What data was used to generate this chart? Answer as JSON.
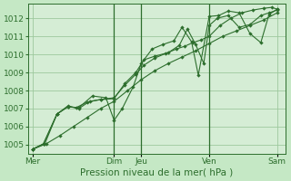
{
  "background_color": "#c5e8c5",
  "plot_bg_color": "#d5edd5",
  "grid_color": "#9dc89d",
  "line_color": "#2d6e2d",
  "marker_color": "#2d6e2d",
  "xlabel": "Pression niveau de la mer( hPa )",
  "ylim": [
    1004.5,
    1012.8
  ],
  "yticks": [
    1005,
    1006,
    1007,
    1008,
    1009,
    1010,
    1011,
    1012
  ],
  "xtick_labels": [
    "Mer",
    "Dim",
    "Jeu",
    "Ven",
    "Sam"
  ],
  "xtick_positions": [
    0,
    3,
    4,
    6.5,
    9
  ],
  "vlines_x": [
    3,
    4,
    6.5
  ],
  "vline_color": "#2d6e2d",
  "tick_color": "#2d6e2d",
  "tick_fontsize": 6.5,
  "xlabel_fontsize": 7.5,
  "lines": [
    {
      "x": [
        0,
        0.5,
        1.0,
        1.5,
        2.0,
        2.5,
        3.0,
        3.5,
        4.0,
        4.5,
        5.0,
        5.5,
        6.0,
        6.5,
        7.0,
        7.5,
        8.0,
        8.5,
        9.0
      ],
      "y": [
        1004.75,
        1005.05,
        1005.5,
        1006.0,
        1006.5,
        1007.0,
        1007.4,
        1008.0,
        1008.6,
        1009.1,
        1009.5,
        1009.85,
        1010.2,
        1010.6,
        1011.0,
        1011.3,
        1011.6,
        1011.9,
        1012.3
      ]
    },
    {
      "x": [
        0,
        0.4,
        0.9,
        1.3,
        1.6,
        2.0,
        2.5,
        3.0,
        3.4,
        3.8,
        4.1,
        4.5,
        5.0,
        5.4,
        5.7,
        6.0,
        6.3,
        6.5,
        6.8,
        7.2,
        7.6,
        8.0,
        8.4,
        8.7,
        9.0
      ],
      "y": [
        1004.75,
        1005.05,
        1006.7,
        1007.1,
        1007.05,
        1007.35,
        1007.5,
        1007.55,
        1008.4,
        1009.0,
        1009.7,
        1009.9,
        1010.1,
        1010.5,
        1011.4,
        1010.55,
        1009.5,
        1011.6,
        1012.0,
        1012.15,
        1011.5,
        1011.65,
        1012.15,
        1012.3,
        1012.45
      ]
    },
    {
      "x": [
        0,
        0.4,
        0.9,
        1.3,
        1.7,
        2.2,
        2.7,
        3.0,
        3.3,
        3.7,
        4.0,
        4.4,
        4.8,
        5.2,
        5.5,
        5.85,
        6.1,
        6.5,
        6.85,
        7.2,
        7.6,
        8.0,
        8.4,
        8.7,
        9.0
      ],
      "y": [
        1004.75,
        1005.05,
        1006.7,
        1007.1,
        1007.05,
        1007.7,
        1007.6,
        1006.35,
        1007.0,
        1008.2,
        1009.5,
        1010.3,
        1010.55,
        1010.75,
        1011.5,
        1010.7,
        1008.85,
        1012.1,
        1012.15,
        1012.4,
        1012.3,
        1011.15,
        1010.65,
        1012.2,
        1012.5
      ]
    },
    {
      "x": [
        0,
        0.45,
        0.9,
        1.3,
        1.7,
        2.1,
        2.5,
        3.0,
        3.4,
        3.8,
        4.1,
        4.5,
        4.9,
        5.3,
        5.6,
        5.9,
        6.2,
        6.5,
        6.9,
        7.3,
        7.7,
        8.1,
        8.5,
        8.8,
        9.0
      ],
      "y": [
        1004.75,
        1005.05,
        1006.7,
        1007.15,
        1007.0,
        1007.4,
        1007.5,
        1007.6,
        1008.3,
        1008.9,
        1009.4,
        1009.8,
        1010.05,
        1010.3,
        1010.45,
        1010.65,
        1010.8,
        1011.0,
        1011.6,
        1012.0,
        1012.3,
        1012.45,
        1012.55,
        1012.6,
        1012.5
      ]
    }
  ]
}
